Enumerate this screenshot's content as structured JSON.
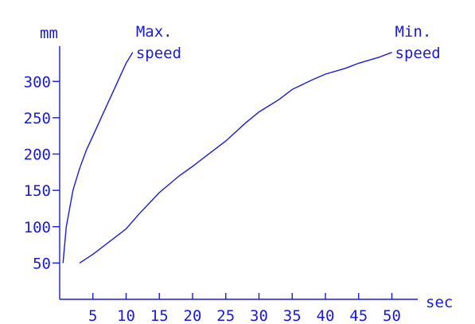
{
  "chart_data": {
    "type": "line",
    "xlabel": "sec",
    "ylabel": "mm",
    "x_ticks": [
      5,
      10,
      15,
      20,
      25,
      30,
      35,
      40,
      45,
      50
    ],
    "y_ticks": [
      50,
      100,
      150,
      200,
      250,
      300
    ],
    "xlim": [
      0,
      55
    ],
    "ylim": [
      0,
      360
    ],
    "grid": false,
    "color": "#1a1ad8",
    "series": [
      {
        "name": "Max. speed",
        "label_lines": [
          "Max.",
          "speed"
        ],
        "x": [
          0.5,
          1,
          2,
          3,
          4,
          5,
          6,
          7,
          8,
          9,
          10,
          11
        ],
        "y": [
          50,
          100,
          150,
          180,
          205,
          225,
          245,
          265,
          285,
          305,
          325,
          340
        ]
      },
      {
        "name": "Min. speed",
        "label_lines": [
          "Min.",
          "speed"
        ],
        "x": [
          3,
          5,
          8,
          10,
          12,
          15,
          18,
          20,
          22,
          25,
          28,
          30,
          33,
          35,
          38,
          40,
          43,
          45,
          48,
          50
        ],
        "y": [
          50,
          62,
          83,
          97,
          118,
          147,
          170,
          183,
          197,
          218,
          243,
          258,
          275,
          289,
          302,
          310,
          318,
          325,
          333,
          340
        ]
      }
    ]
  }
}
